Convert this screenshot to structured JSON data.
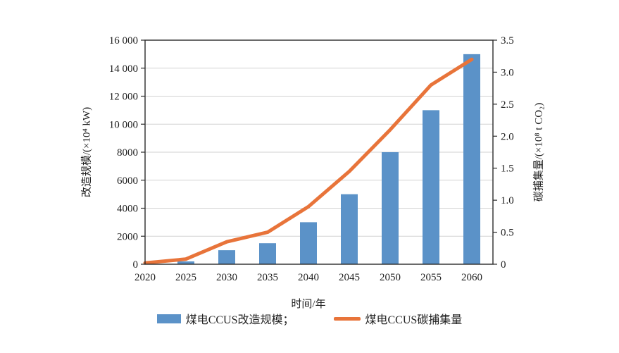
{
  "chart_data": {
    "type": "bar+line",
    "title": "",
    "categories": [
      "2020",
      "2025",
      "2030",
      "2035",
      "2040",
      "2045",
      "2050",
      "2055",
      "2060"
    ],
    "series": [
      {
        "name": "煤电CCUS改造规模",
        "type": "bar",
        "axis": "left",
        "values": [
          0,
          200,
          1000,
          1500,
          3000,
          5000,
          8000,
          11000,
          15000
        ]
      },
      {
        "name": "煤电CCUS碳捕集量",
        "type": "line",
        "axis": "right",
        "values": [
          0.02,
          0.08,
          0.35,
          0.5,
          0.9,
          1.45,
          2.1,
          2.8,
          3.2
        ]
      }
    ],
    "left_axis": {
      "title": "改造规模/(×10⁴ kW)",
      "min": 0,
      "max": 16000,
      "tick_step": 2000,
      "tick_labels": [
        "0",
        "2000",
        "4000",
        "6000",
        "8000",
        "10 000",
        "12 000",
        "14 000",
        "16 000"
      ]
    },
    "right_axis": {
      "title": "碳捕集量/(×10⁸ t CO₂)",
      "min": 0,
      "max": 3.5,
      "tick_step": 0.5,
      "tick_labels": [
        "0",
        "0.5",
        "1.0",
        "1.5",
        "2.0",
        "2.5",
        "3.0",
        "3.5"
      ]
    },
    "x_axis": {
      "title": "时间/年"
    },
    "legend": [
      {
        "label": "煤电CCUS改造规模；",
        "swatch": "bar"
      },
      {
        "label": "煤电CCUS碳捕集量",
        "swatch": "line"
      }
    ],
    "legend_position": "bottom-center",
    "grid": "horizontal",
    "colors": {
      "bar": "#5b92c8",
      "line": "#e8743a",
      "grid": "#d2d2d2",
      "axis": "#2b2b2b",
      "text": "#1f1f1f"
    }
  }
}
